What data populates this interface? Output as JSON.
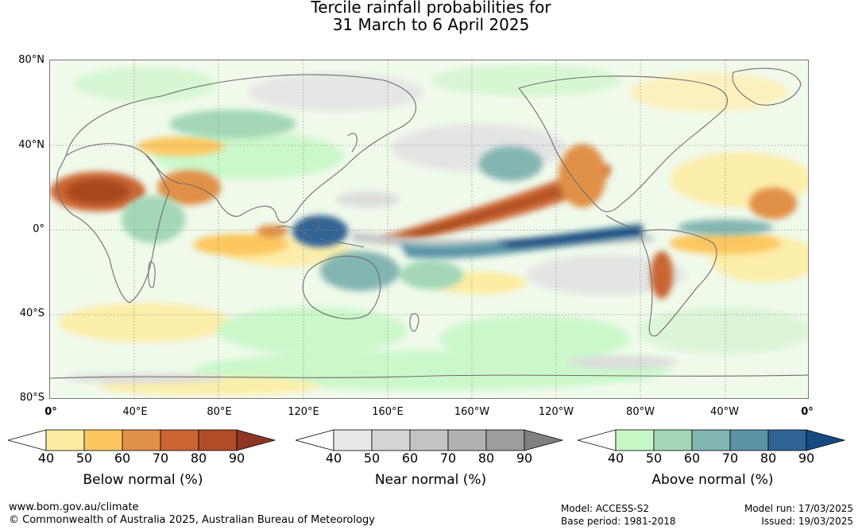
{
  "title": {
    "line1": "Tercile rainfall probabilities for",
    "line2": "31 March to 6 April 2025"
  },
  "map": {
    "lat_labels": [
      "80°N",
      "40°N",
      "0°",
      "40°S",
      "80°S"
    ],
    "lon_labels": [
      "0°",
      "40°E",
      "80°E",
      "120°E",
      "160°E",
      "160°W",
      "120°W",
      "80°W",
      "40°W",
      "0°"
    ],
    "colors": {
      "land_outline": "#6e6e6e",
      "grid": "#8a8a8a"
    }
  },
  "legends": [
    {
      "name": "Below normal (%)",
      "ticks": [
        "40",
        "50",
        "60",
        "70",
        "80",
        "90"
      ],
      "colors": [
        "#ffffff",
        "#fdeda3",
        "#fcc761",
        "#e19047",
        "#cb6533",
        "#b04d28",
        "#8e3523"
      ]
    },
    {
      "name": "Near normal (%)",
      "ticks": [
        "40",
        "50",
        "60",
        "70",
        "80",
        "90"
      ],
      "colors": [
        "#ffffff",
        "#e8e8e8",
        "#d6d6d6",
        "#c4c4c4",
        "#b1b1b1",
        "#9d9d9d",
        "#808080"
      ]
    },
    {
      "name": "Above normal (%)",
      "ticks": [
        "40",
        "50",
        "60",
        "70",
        "80",
        "90"
      ],
      "colors": [
        "#ffffff",
        "#c6f8c6",
        "#a3d7b7",
        "#83b6b1",
        "#5c94a6",
        "#306395",
        "#174a82"
      ]
    }
  ],
  "footer": {
    "website": "www.bom.gov.au/climate",
    "copyright": "© Commonwealth of Australia 2025, Australian Bureau of Meteorology",
    "model": "Model: ACCESS-S2",
    "base_period": "Base period: 1981-2018",
    "model_run": "Model run: 17/03/2025",
    "issued": "Issued: 19/03/2025"
  }
}
